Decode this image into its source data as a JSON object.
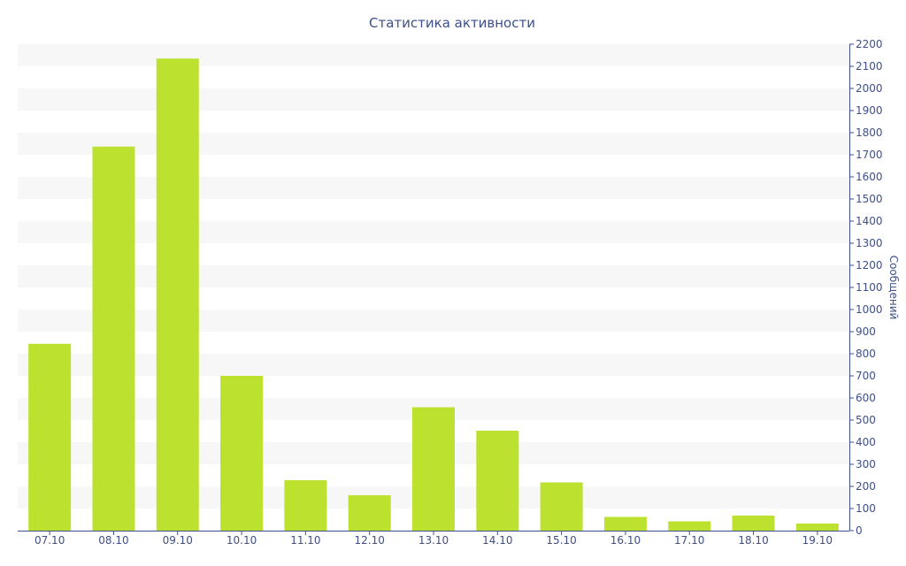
{
  "chart_data": {
    "type": "bar",
    "title": "Статистика активности",
    "ylabel": "Сообщений",
    "xlabel": "",
    "categories": [
      "07.10",
      "08.10",
      "09.10",
      "10.10",
      "11.10",
      "12.10",
      "13.10",
      "14.10",
      "15.10",
      "16.10",
      "17.10",
      "18.10",
      "19.10"
    ],
    "values": [
      845,
      1737,
      2135,
      700,
      228,
      160,
      558,
      452,
      218,
      62,
      42,
      68,
      32
    ],
    "ylim": [
      0,
      2200
    ],
    "ytick_step": 100,
    "y_axis_side": "right",
    "grid": "alternating horizontal bands",
    "bar_color": "#bce12f",
    "band_color": "#f7f7f7",
    "text_color": "#3e4f8a"
  }
}
